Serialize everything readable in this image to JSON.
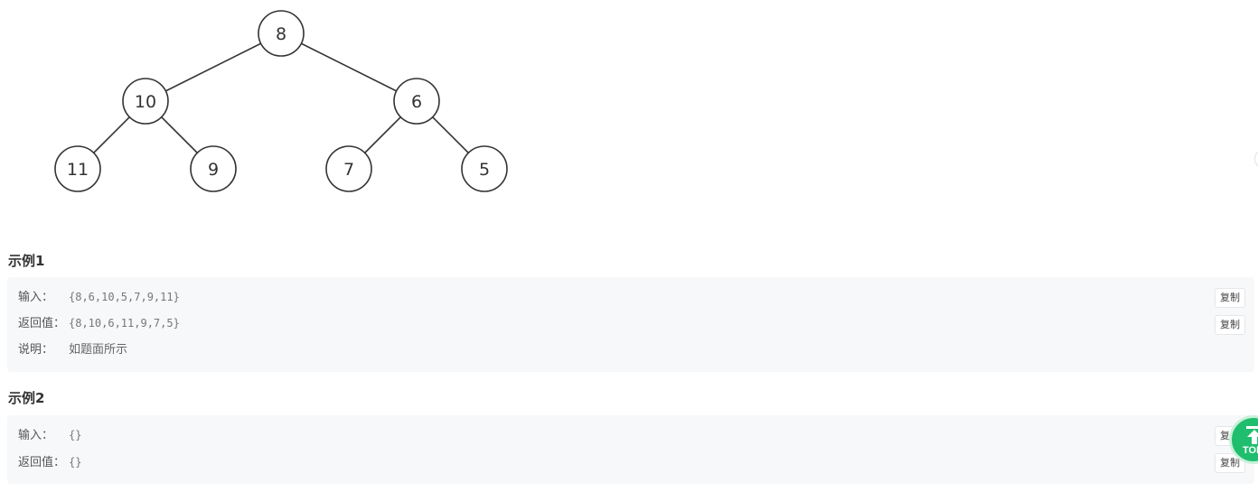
{
  "tree": {
    "nodes": [
      {
        "id": "root",
        "value": "8"
      },
      {
        "id": "l",
        "value": "10"
      },
      {
        "id": "r",
        "value": "6"
      },
      {
        "id": "ll",
        "value": "11"
      },
      {
        "id": "lr",
        "value": "9"
      },
      {
        "id": "rl",
        "value": "7"
      },
      {
        "id": "rr",
        "value": "5"
      }
    ]
  },
  "examples": [
    {
      "title": "示例1",
      "input_label": "输入：",
      "input_value": "{8,6,10,5,7,9,11}",
      "output_label": "返回值：",
      "output_value": "{8,10,6,11,9,7,5}",
      "note_label": "说明：",
      "note_value": "如题面所示",
      "copy_label": "复制"
    },
    {
      "title": "示例2",
      "input_label": "输入：",
      "input_value": "{}",
      "output_label": "返回值：",
      "output_value": "{}",
      "copy_label": "复制"
    }
  ],
  "top_button": {
    "label": "TOP",
    "icon": "arrow-up-icon",
    "color": "#1fbe6e"
  }
}
